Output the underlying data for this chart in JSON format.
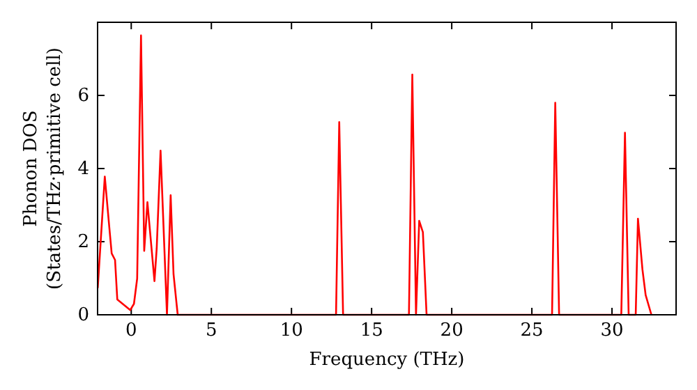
{
  "chart_data": {
    "type": "line",
    "xlabel": "Frequency (THz)",
    "ylabel": "Phonon DOS\n(States/THz·primitive cell)",
    "xlim": [
      -2.1,
      34.0
    ],
    "ylim": [
      0,
      8
    ],
    "xticks": [
      0,
      5,
      10,
      15,
      20,
      25,
      30
    ],
    "yticks": [
      0,
      2,
      4,
      6
    ],
    "grid": false,
    "marker": "none",
    "line_style": "solid",
    "series": [
      {
        "color": "#ff0000",
        "x": [
          -2.09,
          -1.65,
          -1.37,
          -1.22,
          -1.01,
          -0.87,
          -0.06,
          0.17,
          0.37,
          0.61,
          0.81,
          1.01,
          1.45,
          1.59,
          1.83,
          2.23,
          2.46,
          2.64,
          2.9,
          12.78,
          12.98,
          13.22,
          17.33,
          17.54,
          17.77,
          17.97,
          18.2,
          18.43,
          26.26,
          26.46,
          26.7,
          30.58,
          30.81,
          31.04,
          31.48,
          31.62,
          31.9,
          32.1,
          32.46
        ],
        "values": [
          0.73,
          3.78,
          2.4,
          1.68,
          1.5,
          0.42,
          0.13,
          0.3,
          0.99,
          7.64,
          1.75,
          3.08,
          0.92,
          1.82,
          4.49,
          0,
          3.27,
          1.11,
          0,
          0,
          5.27,
          0,
          0,
          6.57,
          0,
          2.57,
          2.26,
          0,
          0,
          5.8,
          0,
          0,
          4.98,
          0,
          0,
          2.63,
          1.24,
          0.54,
          0
        ]
      }
    ]
  }
}
